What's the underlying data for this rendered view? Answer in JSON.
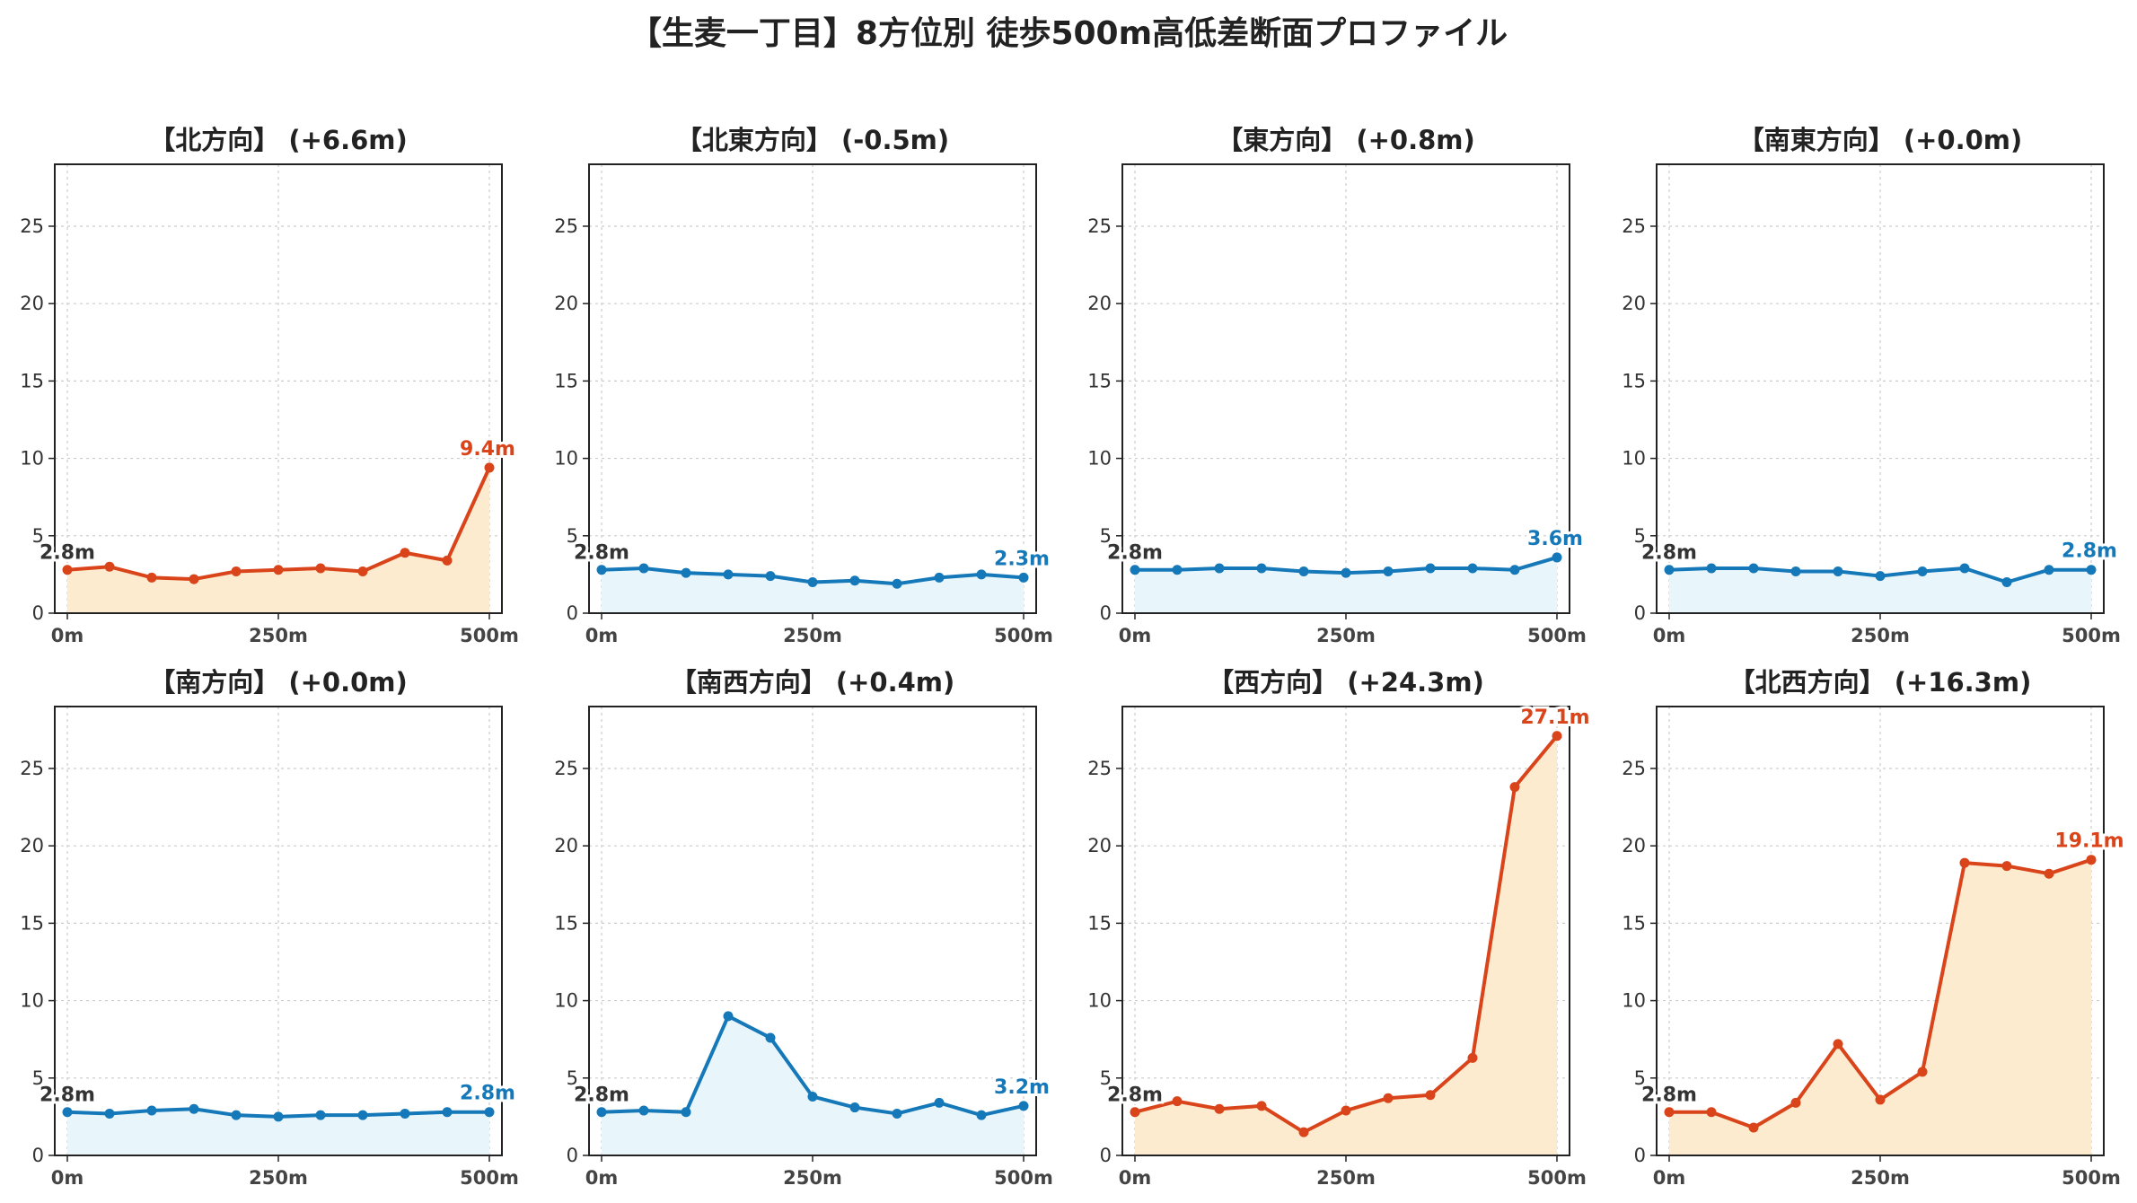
{
  "title": "【生麦一丁目】8方位別 徒歩500m高低差断面プロファイル",
  "colors": {
    "rise_line": "#d9441a",
    "rise_fill": "#fdebd0",
    "flat_line": "#1578b8",
    "flat_fill": "#e8f5fb",
    "start_label": "#333333"
  },
  "chart_data": [
    {
      "type": "area",
      "title": "【北方向】 (+6.6m)",
      "trend": "rise",
      "x": [
        0,
        50,
        100,
        150,
        200,
        250,
        300,
        350,
        400,
        450,
        500
      ],
      "values": [
        2.8,
        3.0,
        2.3,
        2.2,
        2.7,
        2.8,
        2.9,
        2.7,
        3.9,
        3.4,
        9.4
      ],
      "start_label": "2.8m",
      "end_label": "9.4m",
      "xticks": [
        "0m",
        "250m",
        "500m"
      ],
      "yticks": [
        "0",
        "5",
        "10",
        "15",
        "20",
        "25"
      ],
      "ylim": [
        0,
        29
      ],
      "grid": true
    },
    {
      "type": "area",
      "title": "【北東方向】 (-0.5m)",
      "trend": "flat",
      "x": [
        0,
        50,
        100,
        150,
        200,
        250,
        300,
        350,
        400,
        450,
        500
      ],
      "values": [
        2.8,
        2.9,
        2.6,
        2.5,
        2.4,
        2.0,
        2.1,
        1.9,
        2.3,
        2.5,
        2.3
      ],
      "start_label": "2.8m",
      "end_label": "2.3m",
      "xticks": [
        "0m",
        "250m",
        "500m"
      ],
      "yticks": [
        "0",
        "5",
        "10",
        "15",
        "20",
        "25"
      ],
      "ylim": [
        0,
        29
      ],
      "grid": true
    },
    {
      "type": "area",
      "title": "【東方向】 (+0.8m)",
      "trend": "flat",
      "x": [
        0,
        50,
        100,
        150,
        200,
        250,
        300,
        350,
        400,
        450,
        500
      ],
      "values": [
        2.8,
        2.8,
        2.9,
        2.9,
        2.7,
        2.6,
        2.7,
        2.9,
        2.9,
        2.8,
        3.6
      ],
      "start_label": "2.8m",
      "end_label": "3.6m",
      "xticks": [
        "0m",
        "250m",
        "500m"
      ],
      "yticks": [
        "0",
        "5",
        "10",
        "15",
        "20",
        "25"
      ],
      "ylim": [
        0,
        29
      ],
      "grid": true
    },
    {
      "type": "area",
      "title": "【南東方向】 (+0.0m)",
      "trend": "flat",
      "x": [
        0,
        50,
        100,
        150,
        200,
        250,
        300,
        350,
        400,
        450,
        500
      ],
      "values": [
        2.8,
        2.9,
        2.9,
        2.7,
        2.7,
        2.4,
        2.7,
        2.9,
        2.0,
        2.8,
        2.8
      ],
      "start_label": "2.8m",
      "end_label": "2.8m",
      "xticks": [
        "0m",
        "250m",
        "500m"
      ],
      "yticks": [
        "0",
        "5",
        "10",
        "15",
        "20",
        "25"
      ],
      "ylim": [
        0,
        29
      ],
      "grid": true
    },
    {
      "type": "area",
      "title": "【南方向】 (+0.0m)",
      "trend": "flat",
      "x": [
        0,
        50,
        100,
        150,
        200,
        250,
        300,
        350,
        400,
        450,
        500
      ],
      "values": [
        2.8,
        2.7,
        2.9,
        3.0,
        2.6,
        2.5,
        2.6,
        2.6,
        2.7,
        2.8,
        2.8
      ],
      "start_label": "2.8m",
      "end_label": "2.8m",
      "xticks": [
        "0m",
        "250m",
        "500m"
      ],
      "yticks": [
        "0",
        "5",
        "10",
        "15",
        "20",
        "25"
      ],
      "ylim": [
        0,
        29
      ],
      "grid": true
    },
    {
      "type": "area",
      "title": "【南西方向】 (+0.4m)",
      "trend": "flat",
      "x": [
        0,
        50,
        100,
        150,
        200,
        250,
        300,
        350,
        400,
        450,
        500
      ],
      "values": [
        2.8,
        2.9,
        2.8,
        9.0,
        7.6,
        3.8,
        3.1,
        2.7,
        3.4,
        2.6,
        3.2
      ],
      "start_label": "2.8m",
      "end_label": "3.2m",
      "xticks": [
        "0m",
        "250m",
        "500m"
      ],
      "yticks": [
        "0",
        "5",
        "10",
        "15",
        "20",
        "25"
      ],
      "ylim": [
        0,
        29
      ],
      "grid": true
    },
    {
      "type": "area",
      "title": "【西方向】 (+24.3m)",
      "trend": "rise",
      "x": [
        0,
        50,
        100,
        150,
        200,
        250,
        300,
        350,
        400,
        450,
        500
      ],
      "values": [
        2.8,
        3.5,
        3.0,
        3.2,
        1.5,
        2.9,
        3.7,
        3.9,
        6.3,
        23.8,
        27.1
      ],
      "start_label": "2.8m",
      "end_label": "27.1m",
      "xticks": [
        "0m",
        "250m",
        "500m"
      ],
      "yticks": [
        "0",
        "5",
        "10",
        "15",
        "20",
        "25"
      ],
      "ylim": [
        0,
        29
      ],
      "grid": true
    },
    {
      "type": "area",
      "title": "【北西方向】 (+16.3m)",
      "trend": "rise",
      "x": [
        0,
        50,
        100,
        150,
        200,
        250,
        300,
        350,
        400,
        450,
        500
      ],
      "values": [
        2.8,
        2.8,
        1.8,
        3.4,
        7.2,
        3.6,
        5.4,
        18.9,
        18.7,
        18.2,
        19.1
      ],
      "start_label": "2.8m",
      "end_label": "19.1m",
      "xticks": [
        "0m",
        "250m",
        "500m"
      ],
      "yticks": [
        "0",
        "5",
        "10",
        "15",
        "20",
        "25"
      ],
      "ylim": [
        0,
        29
      ],
      "grid": true
    }
  ]
}
